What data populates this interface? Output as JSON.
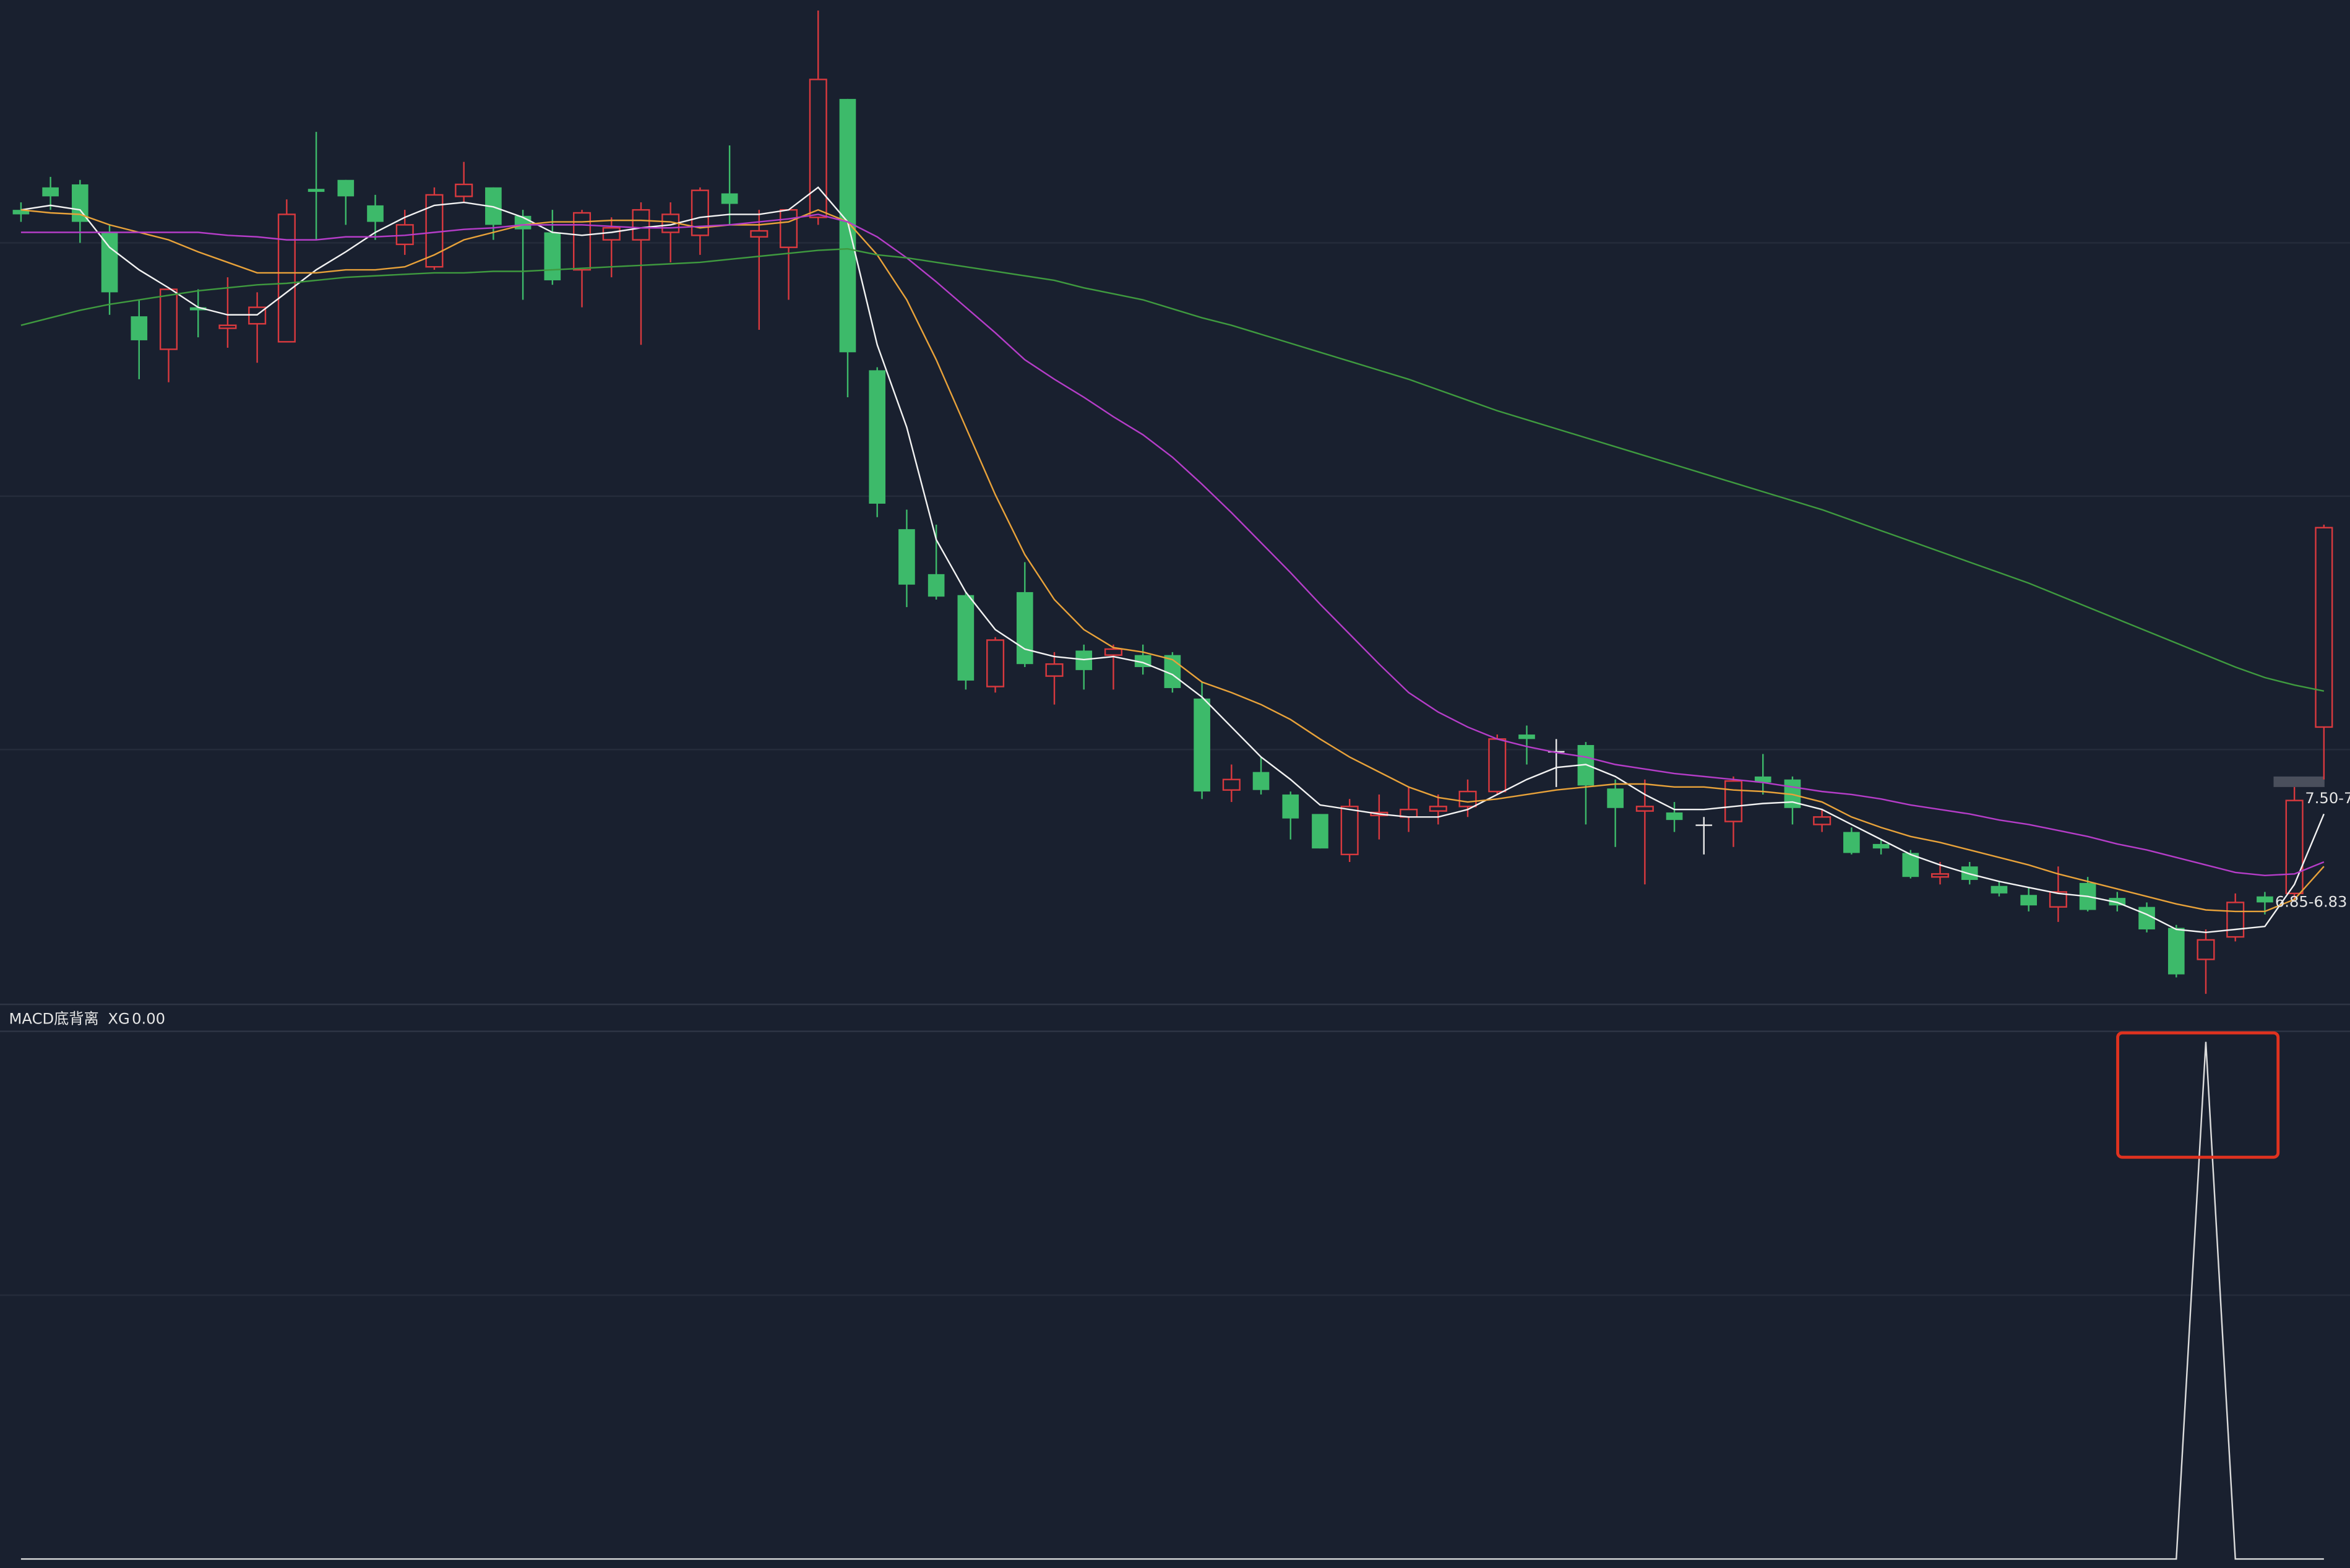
{
  "chart_data": {
    "type": "candlestick",
    "ylim": [
      6.13,
      12.83
    ],
    "up_color": "#d8393e",
    "down_color": "#3dba6a",
    "flat_color": "#e8e8e8",
    "open": [
      11.43,
      11.58,
      11.6,
      11.28,
      10.72,
      10.5,
      10.78,
      10.64,
      10.67,
      10.55,
      11.57,
      11.63,
      11.46,
      11.2,
      11.05,
      11.52,
      11.58,
      11.39,
      11.28,
      11.03,
      11.23,
      11.23,
      11.28,
      11.26,
      11.54,
      11.25,
      11.18,
      11.38,
      12.17,
      10.36,
      9.3,
      9.0,
      8.86,
      8.25,
      8.88,
      8.32,
      8.49,
      8.46,
      8.46,
      8.46,
      8.17,
      7.56,
      7.68,
      7.53,
      7.4,
      7.13,
      7.39,
      7.38,
      7.42,
      7.45,
      7.55,
      7.93,
      7.82,
      7.86,
      7.57,
      7.42,
      7.41,
      7.33,
      7.35,
      7.65,
      7.63,
      7.33,
      7.28,
      7.2,
      7.14,
      6.98,
      7.05,
      6.92,
      6.86,
      6.78,
      6.94,
      6.84,
      6.78,
      6.64,
      6.43,
      6.58,
      6.85,
      6.87,
      7.98
    ],
    "high": [
      11.48,
      11.65,
      11.63,
      11.33,
      10.83,
      10.9,
      10.9,
      10.98,
      10.88,
      11.5,
      11.95,
      11.63,
      11.53,
      11.43,
      11.58,
      11.75,
      11.58,
      11.43,
      11.43,
      11.43,
      11.38,
      11.48,
      11.48,
      11.58,
      11.86,
      11.43,
      11.43,
      12.76,
      12.17,
      10.38,
      9.43,
      9.33,
      8.88,
      8.58,
      9.08,
      8.48,
      8.53,
      8.53,
      8.53,
      8.48,
      8.28,
      7.73,
      7.78,
      7.55,
      7.4,
      7.5,
      7.53,
      7.58,
      7.53,
      7.63,
      7.93,
      7.99,
      7.9,
      7.88,
      7.63,
      7.63,
      7.48,
      7.38,
      7.65,
      7.8,
      7.65,
      7.43,
      7.31,
      7.23,
      7.16,
      7.08,
      7.08,
      6.95,
      6.91,
      7.05,
      6.98,
      6.88,
      6.81,
      6.66,
      6.63,
      6.87,
      6.88,
      7.58,
      9.33
    ],
    "low": [
      11.35,
      11.43,
      11.21,
      10.73,
      10.3,
      10.28,
      10.58,
      10.51,
      10.41,
      10.55,
      11.23,
      11.33,
      11.23,
      11.13,
      11.03,
      11.48,
      11.23,
      10.83,
      10.93,
      10.78,
      10.98,
      10.53,
      11.08,
      11.13,
      11.33,
      10.63,
      10.83,
      11.33,
      10.18,
      9.38,
      8.78,
      8.83,
      8.23,
      8.21,
      8.38,
      8.13,
      8.23,
      8.23,
      8.33,
      8.21,
      7.5,
      7.48,
      7.53,
      7.23,
      7.17,
      7.08,
      7.23,
      7.28,
      7.33,
      7.38,
      7.53,
      7.73,
      7.58,
      7.33,
      7.18,
      6.93,
      7.28,
      7.13,
      7.18,
      7.53,
      7.33,
      7.28,
      7.13,
      7.13,
      6.97,
      6.93,
      6.93,
      6.85,
      6.75,
      6.68,
      6.75,
      6.75,
      6.61,
      6.31,
      6.2,
      6.55,
      6.73,
      6.83,
      7.63
    ],
    "close": [
      11.4,
      11.52,
      11.35,
      10.88,
      10.56,
      10.9,
      10.76,
      10.66,
      10.78,
      11.4,
      11.55,
      11.52,
      11.35,
      11.33,
      11.53,
      11.6,
      11.33,
      11.3,
      10.96,
      11.41,
      11.31,
      11.43,
      11.4,
      11.56,
      11.47,
      11.29,
      11.43,
      12.3,
      10.48,
      9.47,
      8.93,
      8.85,
      8.29,
      8.56,
      8.4,
      8.4,
      8.36,
      8.5,
      8.38,
      8.24,
      7.55,
      7.63,
      7.56,
      7.37,
      7.17,
      7.45,
      7.41,
      7.43,
      7.45,
      7.55,
      7.9,
      7.9,
      7.82,
      7.59,
      7.44,
      7.45,
      7.36,
      7.33,
      7.62,
      7.61,
      7.44,
      7.38,
      7.14,
      7.17,
      6.98,
      7.0,
      6.96,
      6.87,
      6.79,
      6.88,
      6.76,
      6.79,
      6.63,
      6.33,
      6.56,
      6.81,
      6.81,
      7.49,
      9.31
    ],
    "lines": [
      {
        "color": "#f2f2f2",
        "values": [
          11.43,
          11.46,
          11.43,
          11.18,
          11.03,
          10.91,
          10.78,
          10.73,
          10.73,
          10.88,
          11.03,
          11.15,
          11.28,
          11.38,
          11.46,
          11.48,
          11.45,
          11.38,
          11.28,
          11.26,
          11.28,
          11.31,
          11.33,
          11.38,
          11.4,
          11.4,
          11.43,
          11.58,
          11.35,
          10.53,
          9.98,
          9.23,
          8.88,
          8.63,
          8.5,
          8.45,
          8.43,
          8.45,
          8.41,
          8.33,
          8.18,
          7.98,
          7.78,
          7.63,
          7.46,
          7.43,
          7.4,
          7.38,
          7.38,
          7.43,
          7.53,
          7.63,
          7.71,
          7.73,
          7.65,
          7.53,
          7.43,
          7.43,
          7.45,
          7.47,
          7.48,
          7.43,
          7.33,
          7.23,
          7.13,
          7.06,
          7.0,
          6.95,
          6.91,
          6.87,
          6.85,
          6.81,
          6.73,
          6.63,
          6.61,
          6.63,
          6.65,
          6.93,
          7.4
        ]
      },
      {
        "color": "#e8a23a",
        "values": [
          11.43,
          11.41,
          11.4,
          11.33,
          11.28,
          11.23,
          11.15,
          11.08,
          11.01,
          11.01,
          11.01,
          11.03,
          11.03,
          11.05,
          11.13,
          11.23,
          11.28,
          11.33,
          11.35,
          11.35,
          11.36,
          11.36,
          11.35,
          11.31,
          11.33,
          11.33,
          11.35,
          11.43,
          11.35,
          11.13,
          10.83,
          10.43,
          9.98,
          9.53,
          9.13,
          8.83,
          8.63,
          8.51,
          8.48,
          8.43,
          8.28,
          8.21,
          8.13,
          8.03,
          7.9,
          7.78,
          7.68,
          7.58,
          7.51,
          7.48,
          7.5,
          7.53,
          7.56,
          7.58,
          7.6,
          7.6,
          7.58,
          7.58,
          7.56,
          7.55,
          7.53,
          7.48,
          7.38,
          7.31,
          7.25,
          7.21,
          7.16,
          7.11,
          7.06,
          7.0,
          6.95,
          6.9,
          6.85,
          6.8,
          6.76,
          6.75,
          6.75,
          6.83,
          7.05
        ]
      },
      {
        "color": "#b53dc8",
        "values": [
          11.28,
          11.28,
          11.28,
          11.28,
          11.28,
          11.28,
          11.28,
          11.26,
          11.25,
          11.23,
          11.23,
          11.25,
          11.25,
          11.26,
          11.28,
          11.3,
          11.31,
          11.33,
          11.33,
          11.33,
          11.32,
          11.31,
          11.31,
          11.32,
          11.33,
          11.35,
          11.37,
          11.4,
          11.35,
          11.25,
          11.11,
          10.95,
          10.78,
          10.61,
          10.43,
          10.3,
          10.18,
          10.05,
          9.93,
          9.78,
          9.6,
          9.41,
          9.21,
          9.01,
          8.8,
          8.6,
          8.4,
          8.21,
          8.08,
          7.98,
          7.9,
          7.85,
          7.81,
          7.78,
          7.73,
          7.7,
          7.67,
          7.65,
          7.63,
          7.61,
          7.58,
          7.55,
          7.53,
          7.5,
          7.46,
          7.43,
          7.4,
          7.36,
          7.33,
          7.29,
          7.25,
          7.2,
          7.16,
          7.11,
          7.06,
          7.01,
          6.99,
          7.0,
          7.08
        ]
      },
      {
        "color": "#3f9a3f",
        "values": [
          10.66,
          10.71,
          10.76,
          10.8,
          10.83,
          10.86,
          10.89,
          10.91,
          10.93,
          10.94,
          10.96,
          10.98,
          10.99,
          11.0,
          11.01,
          11.01,
          11.02,
          11.02,
          11.03,
          11.04,
          11.05,
          11.06,
          11.07,
          11.08,
          11.1,
          11.12,
          11.14,
          11.16,
          11.17,
          11.13,
          11.11,
          11.08,
          11.05,
          11.02,
          10.99,
          10.96,
          10.91,
          10.87,
          10.83,
          10.77,
          10.71,
          10.66,
          10.6,
          10.54,
          10.48,
          10.42,
          10.36,
          10.3,
          10.23,
          10.16,
          10.09,
          10.03,
          9.97,
          9.91,
          9.85,
          9.79,
          9.73,
          9.67,
          9.61,
          9.55,
          9.49,
          9.43,
          9.36,
          9.29,
          9.22,
          9.15,
          9.08,
          9.01,
          8.94,
          8.86,
          8.78,
          8.7,
          8.62,
          8.54,
          8.46,
          8.38,
          8.31,
          8.26,
          8.22
        ]
      }
    ],
    "annotations": [
      {
        "text": "7.50-7"
      },
      {
        "text": "6.85-6.83"
      }
    ],
    "indicator": {
      "type": "line",
      "title": "MACD底背离",
      "ylim": [
        0,
        1
      ],
      "series": [
        {
          "name": "XG",
          "color": "#dcdcdc",
          "last_value": 0,
          "last_value_label": "0.00",
          "values": [
            0,
            0,
            0,
            0,
            0,
            0,
            0,
            0,
            0,
            0,
            0,
            0,
            0,
            0,
            0,
            0,
            0,
            0,
            0,
            0,
            0,
            0,
            0,
            0,
            0,
            0,
            0,
            0,
            0,
            0,
            0,
            0,
            0,
            0,
            0,
            0,
            0,
            0,
            0,
            0,
            0,
            0,
            0,
            0,
            0,
            0,
            0,
            0,
            0,
            0,
            0,
            0,
            0,
            0,
            0,
            0,
            0,
            0,
            0,
            0,
            0,
            0,
            0,
            0,
            0,
            0,
            0,
            0,
            0,
            0,
            0,
            0,
            0,
            0,
            1,
            0,
            0,
            0,
            0
          ]
        }
      ]
    }
  }
}
